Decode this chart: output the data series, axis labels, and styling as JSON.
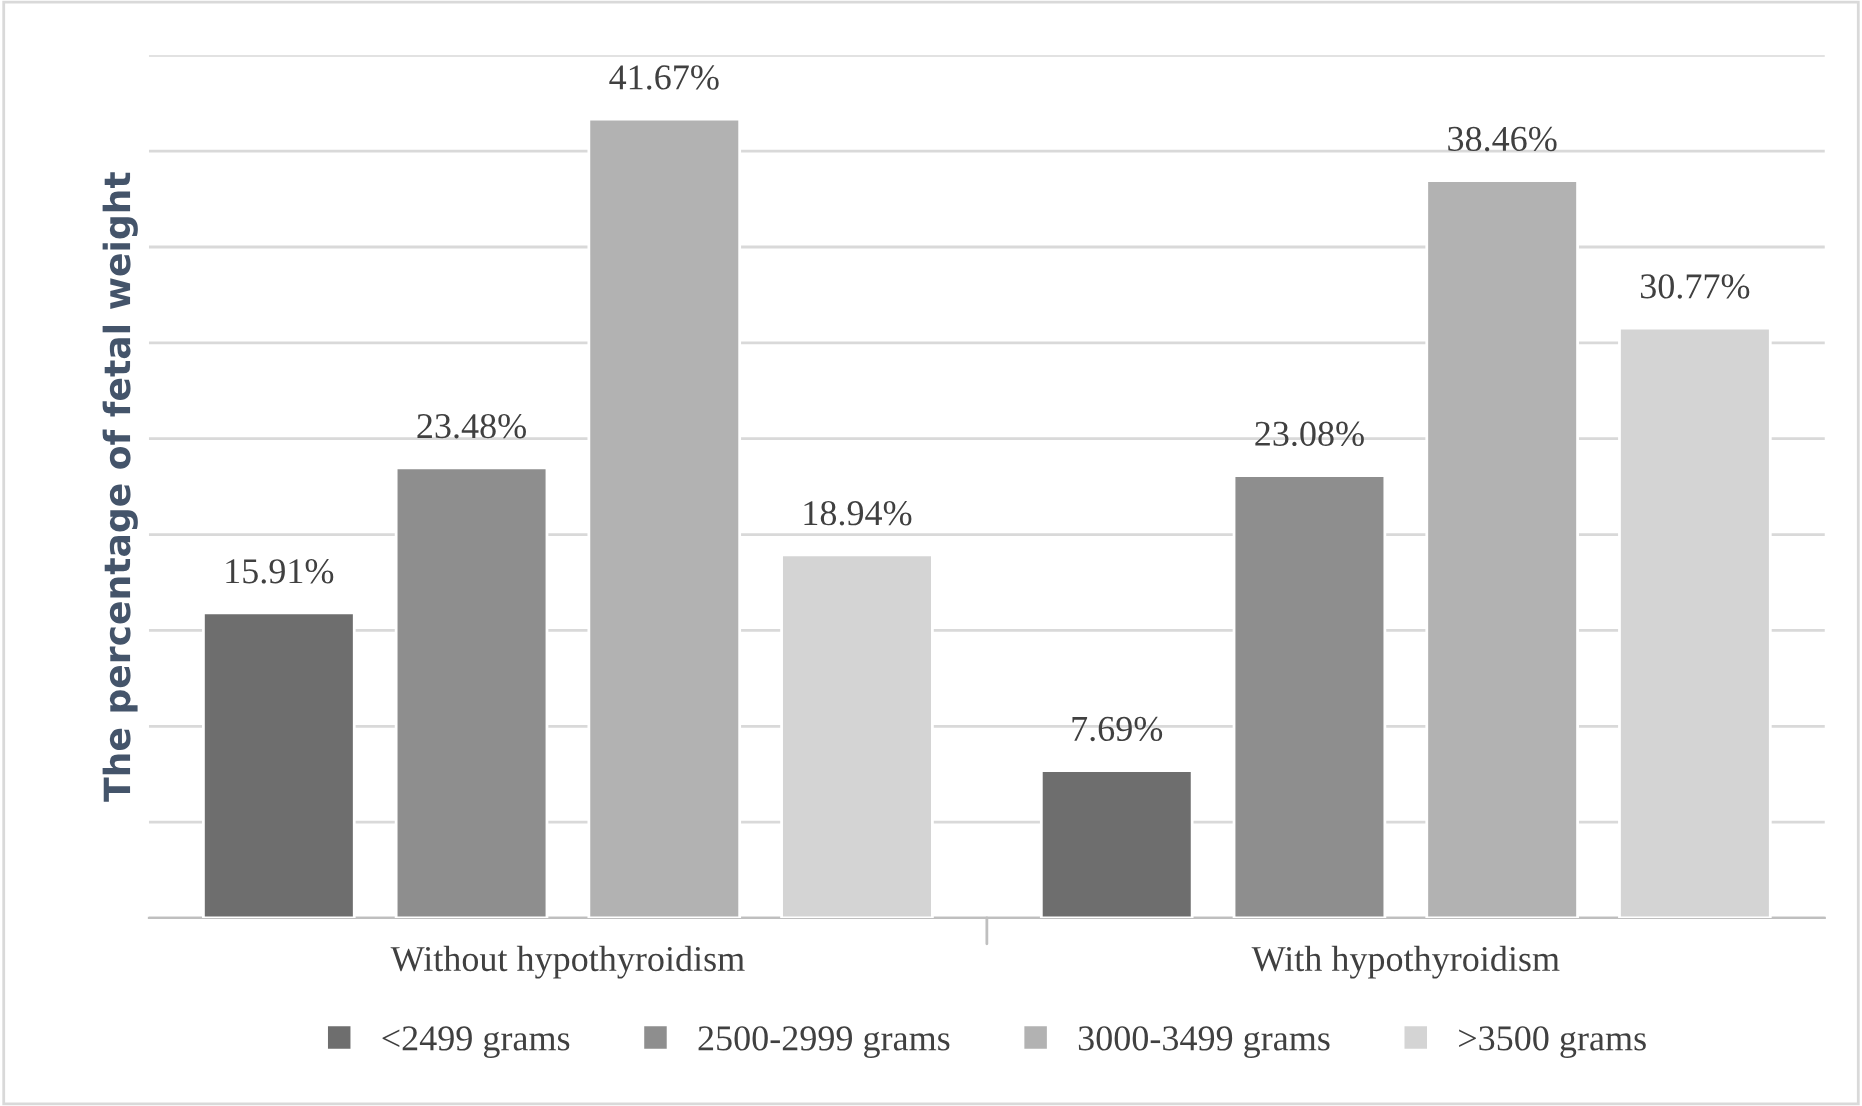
{
  "chart_data": {
    "type": "bar",
    "ylabel": "The percentage of fetal weight",
    "categories": [
      "Without hypothyroidism",
      "With hypothyroidism"
    ],
    "series": [
      {
        "name": "<2499 grams",
        "color": "#6e6e6e",
        "values": [
          15.91,
          7.69
        ],
        "value_labels": [
          "15.91%",
          "7.69%"
        ]
      },
      {
        "name": "2500-2999 grams",
        "color": "#8e8e8e",
        "values": [
          23.48,
          23.08
        ],
        "value_labels": [
          "23.48%",
          "23.08%"
        ]
      },
      {
        "name": "3000-3499 grams",
        "color": "#b2b2b2",
        "values": [
          41.67,
          38.46
        ],
        "value_labels": [
          "41.67%",
          "38.46%"
        ]
      },
      {
        "name": ">3500 grams",
        "color": "#d4d4d4",
        "values": [
          18.94,
          30.77
        ],
        "value_labels": [
          "18.94%",
          "30.77%"
        ]
      }
    ],
    "ylim": [
      0,
      45
    ],
    "yticks": [
      {
        "value": 0,
        "label": null
      },
      {
        "value": 5,
        "label": null
      },
      {
        "value": 10,
        "label": null
      },
      {
        "value": 15,
        "label": null
      },
      {
        "value": 20,
        "label": null
      },
      {
        "value": 25,
        "label": null
      },
      {
        "value": 30,
        "label": null
      },
      {
        "value": 35,
        "label": null
      },
      {
        "value": 40,
        "label": null
      },
      {
        "value": 45,
        "label": null
      }
    ],
    "tick_labels": "x",
    "grid": "y",
    "legend": "bottom"
  }
}
